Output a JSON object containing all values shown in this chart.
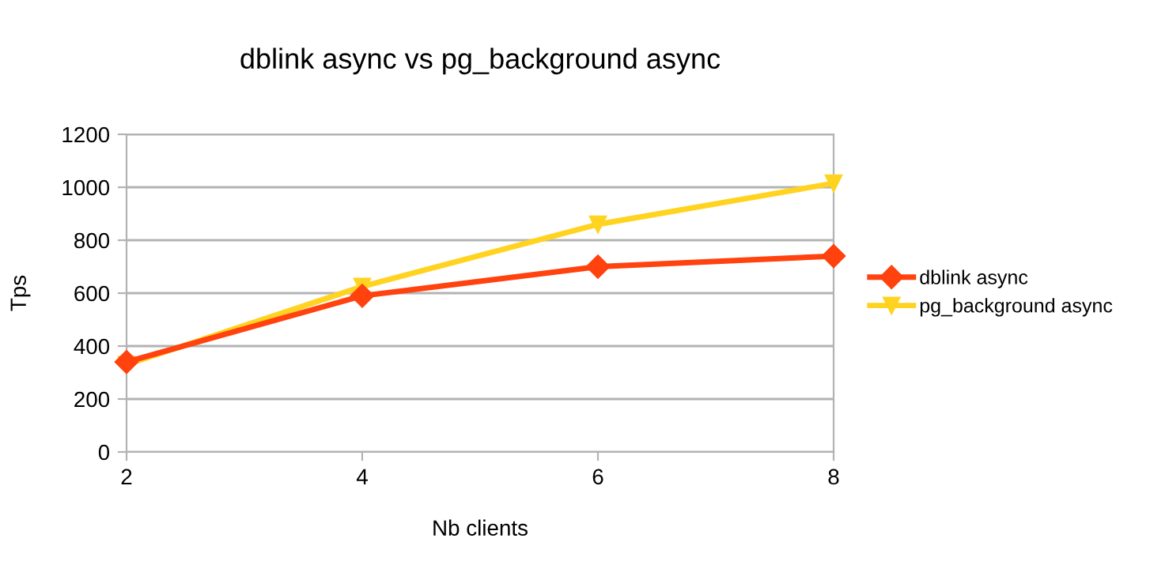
{
  "chart_data": {
    "type": "line",
    "title": "dblink async vs pg_background async",
    "xlabel": "Nb clients",
    "ylabel": "Tps",
    "x": [
      2,
      4,
      6,
      8
    ],
    "series": [
      {
        "name": "dblink async",
        "color": "#ff420e",
        "marker": "diamond",
        "values": [
          340,
          590,
          700,
          740
        ]
      },
      {
        "name": "pg_background async",
        "color": "#ffd320",
        "marker": "triangle",
        "values": [
          330,
          625,
          860,
          1015
        ]
      }
    ],
    "xlim": [
      2,
      8
    ],
    "xticks": [
      2,
      4,
      6,
      8
    ],
    "ylim": [
      0,
      1200
    ],
    "yticks": [
      0,
      200,
      400,
      600,
      800,
      1000,
      1200
    ],
    "grid": "y",
    "legend": "right",
    "line_style": "solid"
  }
}
